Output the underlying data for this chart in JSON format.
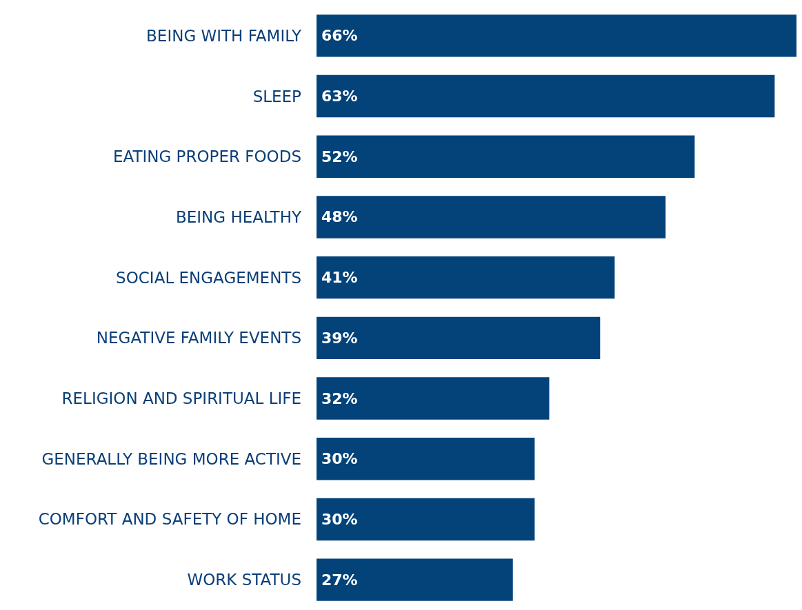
{
  "chart_data": {
    "type": "bar",
    "orientation": "horizontal",
    "categories": [
      "BEING WITH FAMILY",
      "SLEEP",
      "EATING PROPER FOODS",
      "BEING HEALTHY",
      "SOCIAL ENGAGEMENTS",
      "NEGATIVE FAMILY EVENTS",
      "RELIGION AND SPIRITUAL LIFE",
      "GENERALLY BEING MORE ACTIVE",
      "COMFORT AND SAFETY OF HOME",
      "WORK STATUS"
    ],
    "values": [
      66,
      63,
      52,
      48,
      41,
      39,
      32,
      30,
      30,
      27
    ],
    "value_labels": [
      "66%",
      "63%",
      "52%",
      "48%",
      "41%",
      "39%",
      "32%",
      "30%",
      "30%",
      "27%"
    ],
    "color": "#03437a"
  }
}
